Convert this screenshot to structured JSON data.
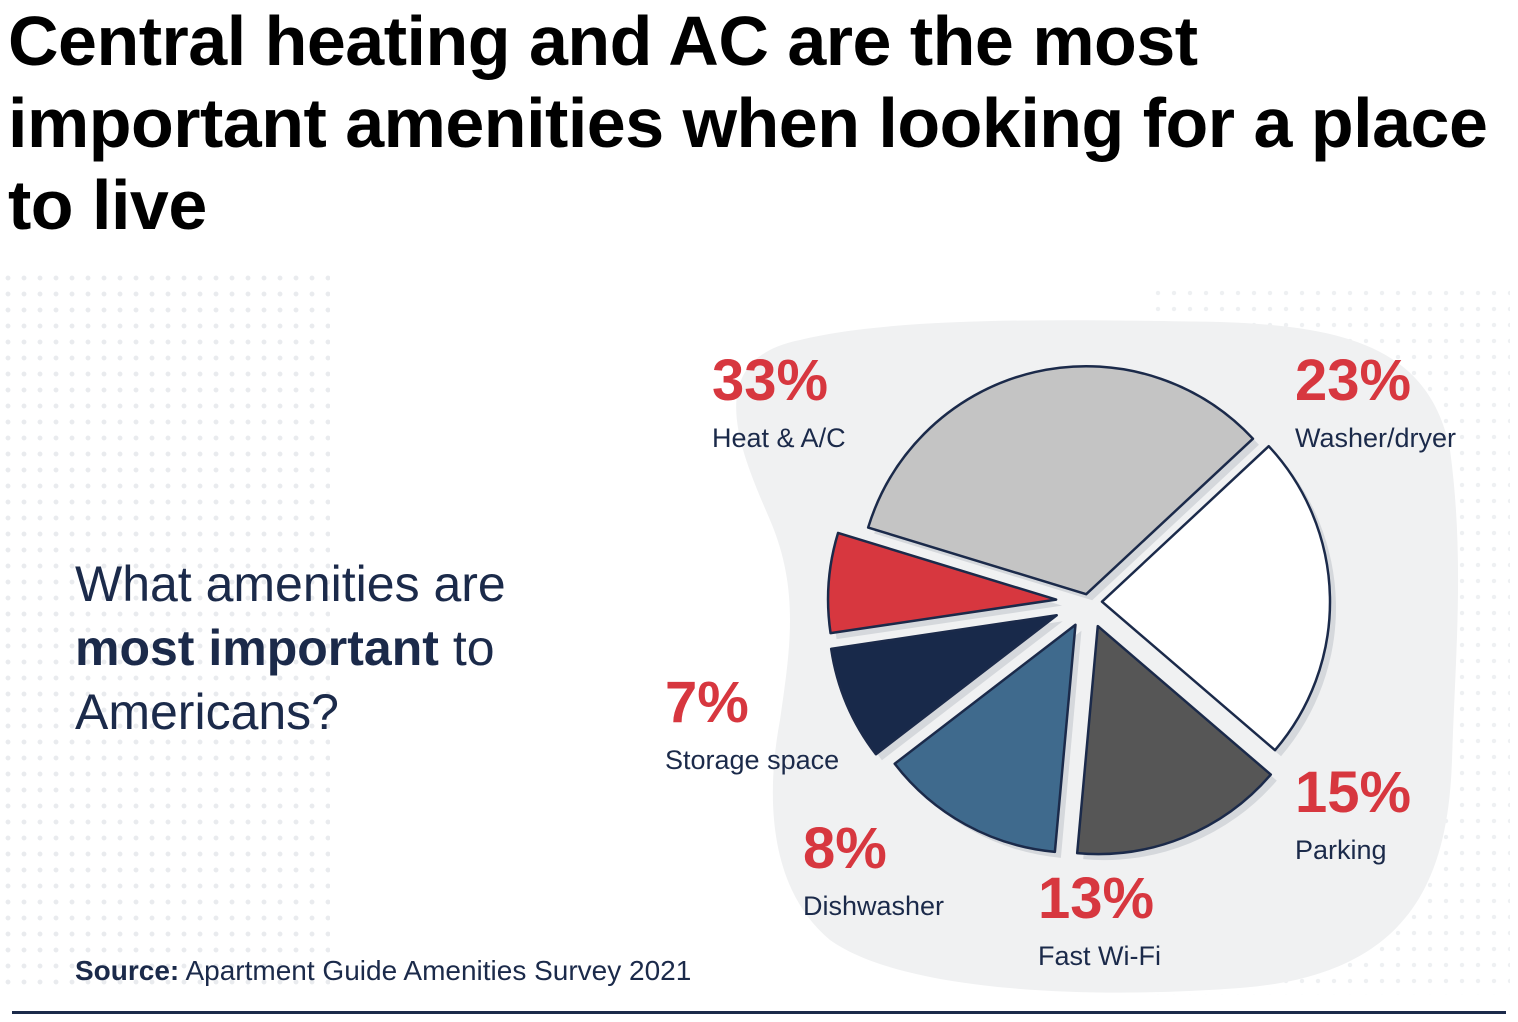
{
  "title": "Central heating and AC are the most important amenities when looking for a place to live",
  "question": {
    "pre": "What amenities are",
    "bold": "most important",
    "post": "to",
    "end": "Americans?"
  },
  "source": {
    "label": "Source:",
    "text": "Apartment Guide Amenities Survey 2021"
  },
  "colors": {
    "accent": "#d7373f",
    "navy": "#1b2a4a",
    "blob": "#f0f1f2"
  },
  "chart_data": {
    "type": "pie",
    "title": "",
    "slices": [
      {
        "label": "Heat & A/C",
        "value": 33,
        "display": "33%",
        "color": "#c4c4c4"
      },
      {
        "label": "Washer/dryer",
        "value": 23,
        "display": "23%",
        "color": "#ffffff"
      },
      {
        "label": "Parking",
        "value": 15,
        "display": "15%",
        "color": "#565656"
      },
      {
        "label": "Fast Wi-Fi",
        "value": 13,
        "display": "13%",
        "color": "#3f6a8d"
      },
      {
        "label": "Dishwasher",
        "value": 8,
        "display": "8%",
        "color": "#18294a"
      },
      {
        "label": "Storage space",
        "value": 7,
        "display": "7%",
        "color": "#d7373f"
      }
    ]
  }
}
